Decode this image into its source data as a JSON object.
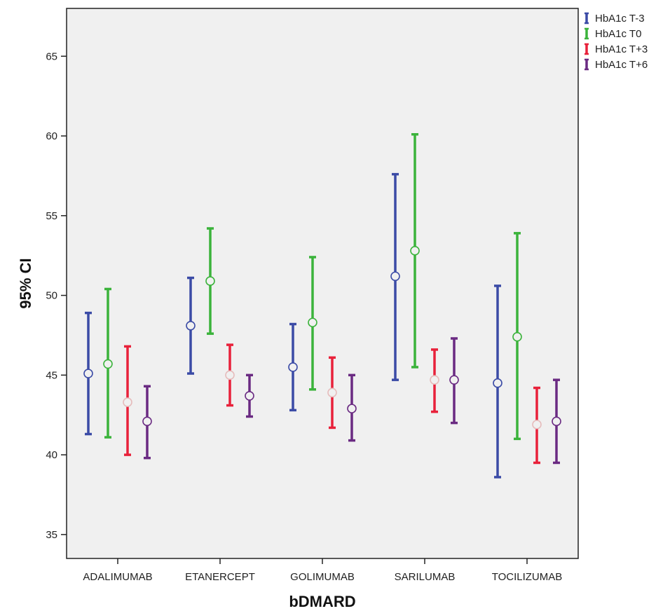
{
  "chart_data": {
    "type": "errorbar",
    "title": "",
    "xlabel": "bDMARD",
    "ylabel": "95% CI",
    "ylim": [
      33.5,
      68
    ],
    "yticks": [
      35,
      40,
      45,
      50,
      55,
      60,
      65
    ],
    "categories": [
      "ADALIMUMAB",
      "ETANERCEPT",
      "GOLIMUMAB",
      "SARILUMAB",
      "TOCILIZUMAB"
    ],
    "grid": false,
    "legend_position": "top-right-outside",
    "series": [
      {
        "name": "HbA1c T-3",
        "color": "#3b4ba6",
        "mean": [
          45.1,
          48.1,
          45.5,
          51.2,
          44.5
        ],
        "lower": [
          41.3,
          45.1,
          42.8,
          44.7,
          38.6
        ],
        "upper": [
          48.9,
          51.1,
          48.2,
          57.6,
          50.6
        ]
      },
      {
        "name": "HbA1c T0",
        "color": "#3bb33b",
        "mean": [
          45.7,
          50.9,
          48.3,
          52.8,
          47.4
        ],
        "lower": [
          41.1,
          47.6,
          44.1,
          45.5,
          41.0
        ],
        "upper": [
          50.4,
          54.2,
          52.4,
          60.1,
          53.9
        ]
      },
      {
        "name": "HbA1c T+3",
        "color": "#e8213a",
        "mean": [
          43.3,
          45.0,
          43.9,
          44.7,
          41.9
        ],
        "lower": [
          40.0,
          43.1,
          41.7,
          42.7,
          39.5
        ],
        "upper": [
          46.8,
          46.9,
          46.1,
          46.6,
          44.2
        ]
      },
      {
        "name": "HbA1c T+6",
        "color": "#6a2a82",
        "mean": [
          42.1,
          43.7,
          42.9,
          44.7,
          42.1
        ],
        "lower": [
          39.8,
          42.4,
          40.9,
          42.0,
          39.5
        ],
        "upper": [
          44.3,
          45.0,
          45.0,
          47.3,
          44.7
        ]
      }
    ]
  }
}
